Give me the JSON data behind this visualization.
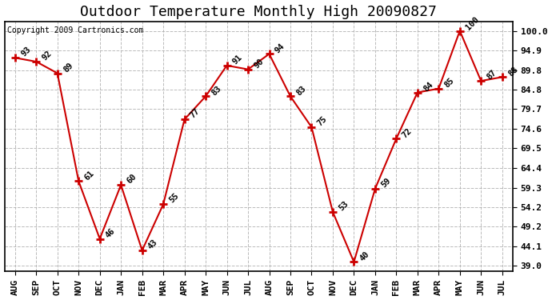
{
  "title": "Outdoor Temperature Monthly High 20090827",
  "copyright": "Copyright 2009 Cartronics.com",
  "months": [
    "AUG",
    "SEP",
    "OCT",
    "NOV",
    "DEC",
    "JAN",
    "FEB",
    "MAR",
    "APR",
    "MAY",
    "JUN",
    "JUL",
    "AUG",
    "SEP",
    "OCT",
    "NOV",
    "DEC",
    "JAN",
    "FEB",
    "MAR",
    "APR",
    "MAY",
    "JUN",
    "JUL"
  ],
  "values": [
    93,
    92,
    89,
    61,
    46,
    60,
    43,
    55,
    77,
    83,
    91,
    90,
    94,
    83,
    75,
    53,
    40,
    59,
    72,
    84,
    85,
    100,
    87,
    88
  ],
  "line_color": "#cc0000",
  "marker_color": "#cc0000",
  "bg_color": "#ffffff",
  "grid_color": "#aaaaaa",
  "yticks": [
    39.0,
    44.1,
    49.2,
    54.2,
    59.3,
    64.4,
    69.5,
    74.6,
    79.7,
    84.8,
    89.8,
    94.9,
    100.0
  ],
  "ylim_min": 37.5,
  "ylim_max": 102.5,
  "title_fontsize": 13,
  "label_fontsize": 7.5,
  "tick_fontsize": 8
}
